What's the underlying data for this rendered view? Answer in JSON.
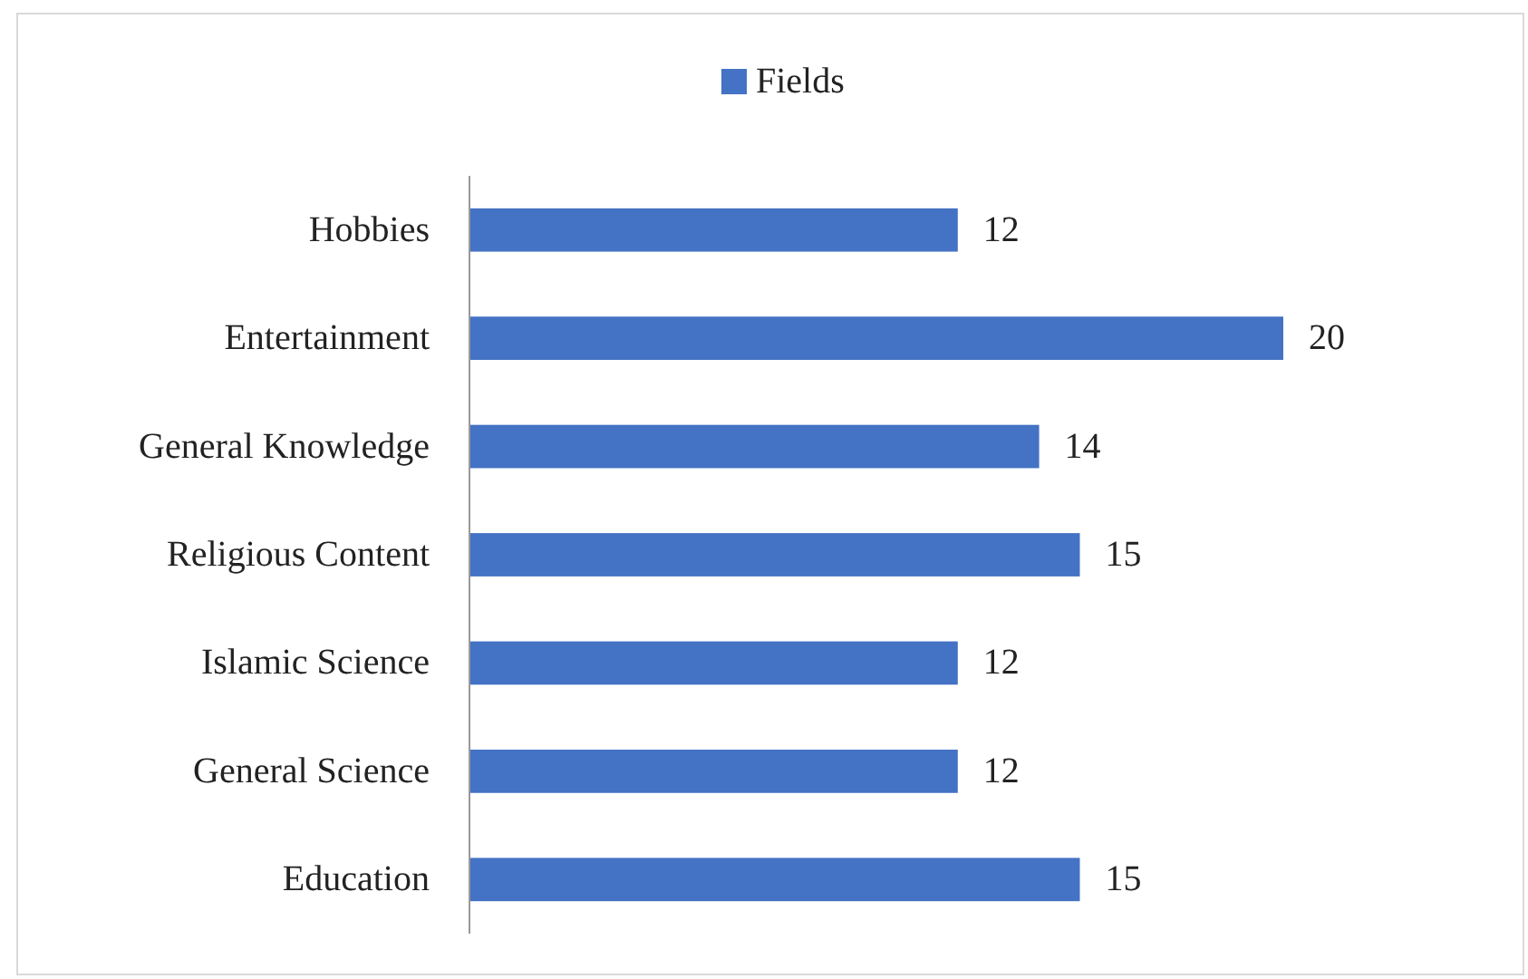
{
  "chart_data": {
    "type": "bar",
    "orientation": "horizontal",
    "categories": [
      "Hobbies",
      "Entertainment",
      "General Knowledge",
      "Religious Content",
      "Islamic Science",
      "General Science",
      "Education"
    ],
    "series": [
      {
        "name": "Fields",
        "color": "#4472c4",
        "values": [
          12,
          20,
          14,
          15,
          12,
          12,
          15
        ]
      }
    ],
    "data_labels": true,
    "legend": "top",
    "tick_labels": "y"
  }
}
